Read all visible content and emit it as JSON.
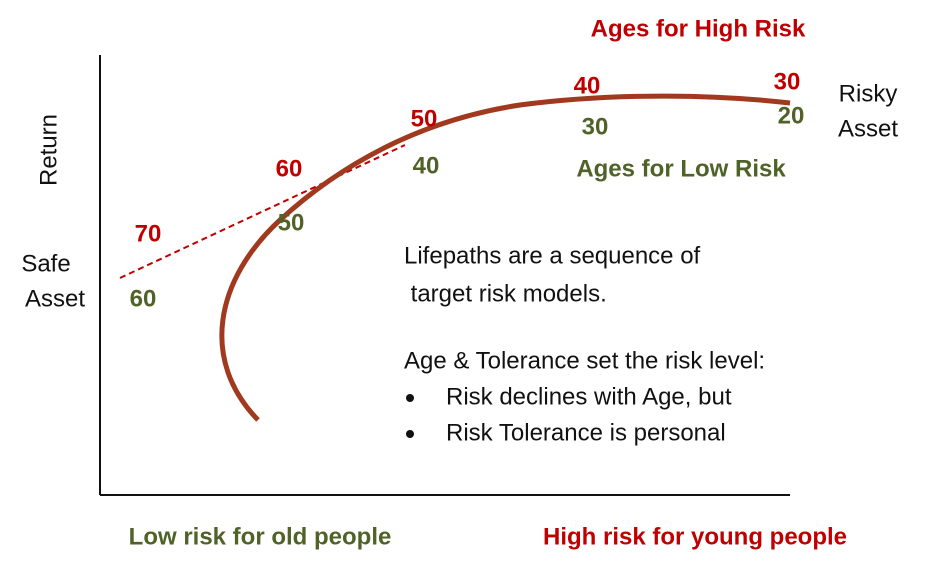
{
  "title_high": "Ages for High Risk",
  "title_low": "Ages for Low Risk",
  "axis": {
    "y_label": "Return"
  },
  "endpoints": {
    "safe": [
      "Safe",
      "Asset"
    ],
    "risky": [
      "Risky",
      "Asset"
    ]
  },
  "high_risk_ages": [
    70,
    60,
    50,
    40,
    30
  ],
  "low_risk_ages": [
    60,
    50,
    40,
    30,
    20
  ],
  "notes": {
    "lines": [
      "Lifepaths are a sequence of",
      " target risk models.",
      "Age & Tolerance set the risk level:"
    ],
    "bullets": [
      "Risk declines with Age, but",
      "Risk Tolerance is personal"
    ]
  },
  "footer": {
    "left": "Low risk for old people",
    "right": "High risk for young people"
  }
}
